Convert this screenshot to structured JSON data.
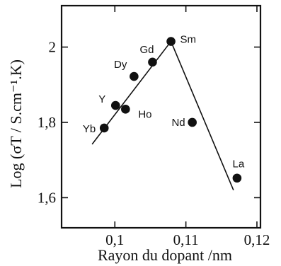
{
  "chart_data": {
    "type": "scatter",
    "xlabel": "Rayon du dopant /nm",
    "ylabel": "Log (σT / S.cm⁻¹.K)",
    "xlim": [
      0.0925,
      0.1205
    ],
    "ylim": [
      1.52,
      2.11
    ],
    "x_ticks": [
      0.1,
      0.11,
      0.12
    ],
    "x_tick_labels": [
      "0,1",
      "0,11",
      "0,12"
    ],
    "y_ticks": [
      1.6,
      1.8,
      2.0
    ],
    "y_tick_labels": [
      "1,6",
      "1,8",
      "2"
    ],
    "grid": false,
    "points": [
      {
        "label": "Yb",
        "x": 0.0985,
        "y": 1.785
      },
      {
        "label": "Y",
        "x": 0.1001,
        "y": 1.845
      },
      {
        "label": "Ho",
        "x": 0.1015,
        "y": 1.835
      },
      {
        "label": "Dy",
        "x": 0.1027,
        "y": 1.922
      },
      {
        "label": "Gd",
        "x": 0.1053,
        "y": 1.96
      },
      {
        "label": "Sm",
        "x": 0.1079,
        "y": 2.015
      },
      {
        "label": "Nd",
        "x": 0.1109,
        "y": 1.8
      },
      {
        "label": "La",
        "x": 0.1172,
        "y": 1.652
      }
    ],
    "fit_lines": [
      {
        "points": [
          [
            0.0968,
            1.742
          ],
          [
            0.1079,
            2.015
          ]
        ]
      },
      {
        "points": [
          [
            0.1079,
            2.015
          ],
          [
            0.1167,
            1.62
          ]
        ]
      }
    ]
  }
}
